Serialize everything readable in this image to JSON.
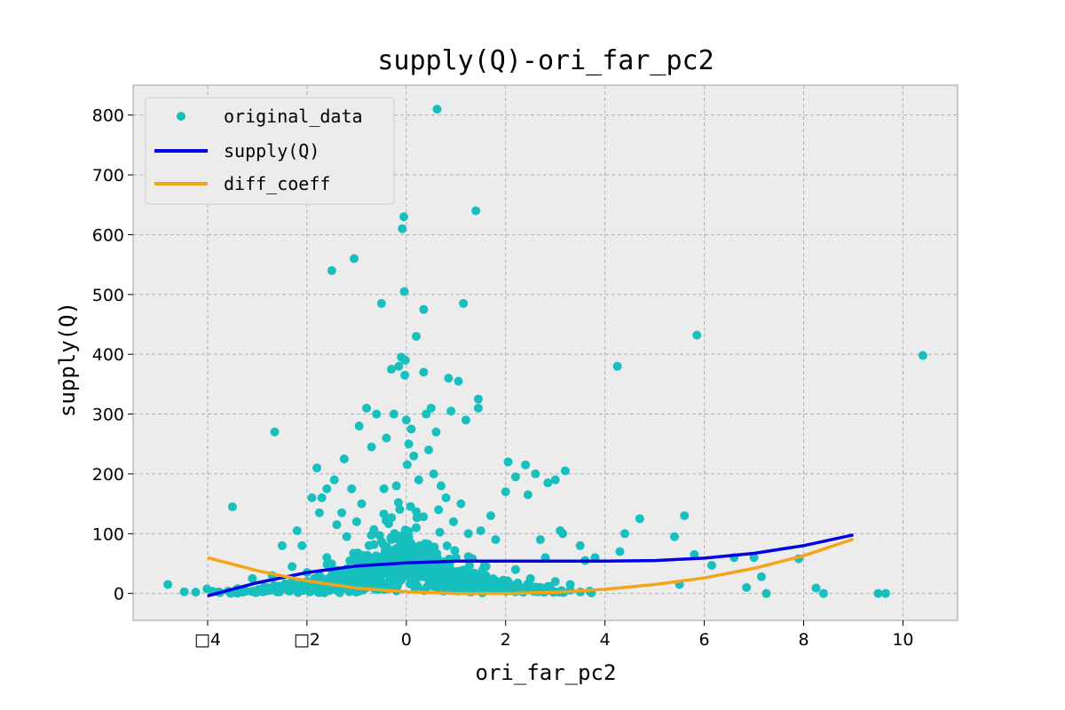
{
  "chart_data": {
    "type": "scatter",
    "title": "supply(Q)-ori_far_pc2",
    "xlabel": "ori_far_pc2",
    "ylabel": "supply(Q)",
    "xlim": [
      -5.5,
      11.1
    ],
    "ylim": [
      -45,
      850
    ],
    "xticks": [
      -4,
      -2,
      0,
      2,
      4,
      6,
      8,
      10
    ],
    "xtick_labels": [
      "□4",
      "□2",
      "0",
      "2",
      "4",
      "6",
      "8",
      "10"
    ],
    "yticks": [
      0,
      100,
      200,
      300,
      400,
      500,
      600,
      700,
      800
    ],
    "yticks_labels": [
      "0",
      "100",
      "200",
      "300",
      "400",
      "500",
      "600",
      "700",
      "800"
    ],
    "grid": true,
    "legend_position": "top-left",
    "colors": {
      "points": "#17bfbf",
      "supply": "#0000e6",
      "diff": "#f5a418",
      "background": "#ececec",
      "frame": "#bcbcbc"
    },
    "series": [
      {
        "name": "original_data",
        "kind": "scatter",
        "points": [
          [
            -4.8,
            15
          ],
          [
            -3.5,
            145
          ],
          [
            -3.4,
            8
          ],
          [
            -3.1,
            25
          ],
          [
            -2.8,
            10
          ],
          [
            -2.7,
            30
          ],
          [
            -2.65,
            270
          ],
          [
            -2.5,
            80
          ],
          [
            -2.3,
            45
          ],
          [
            -2.2,
            105
          ],
          [
            -2.1,
            80
          ],
          [
            -2.0,
            35
          ],
          [
            -1.9,
            160
          ],
          [
            -1.85,
            25
          ],
          [
            -1.8,
            210
          ],
          [
            -1.75,
            135
          ],
          [
            -1.7,
            160
          ],
          [
            -1.6,
            175
          ],
          [
            -1.6,
            60
          ],
          [
            -1.5,
            540
          ],
          [
            -1.45,
            190
          ],
          [
            -1.4,
            115
          ],
          [
            -1.3,
            135
          ],
          [
            -1.25,
            225
          ],
          [
            -1.2,
            95
          ],
          [
            -1.1,
            175
          ],
          [
            -1.05,
            560
          ],
          [
            -1.0,
            120
          ],
          [
            -0.95,
            280
          ],
          [
            -0.9,
            150
          ],
          [
            -0.8,
            310
          ],
          [
            -0.75,
            80
          ],
          [
            -0.7,
            245
          ],
          [
            -0.6,
            300
          ],
          [
            -0.5,
            485
          ],
          [
            -0.45,
            175
          ],
          [
            -0.4,
            260
          ],
          [
            -0.3,
            375
          ],
          [
            -0.25,
            300
          ],
          [
            -0.2,
            180
          ],
          [
            -0.15,
            380
          ],
          [
            -0.1,
            395
          ],
          [
            -0.08,
            610
          ],
          [
            -0.05,
            630
          ],
          [
            -0.04,
            505
          ],
          [
            -0.03,
            365
          ],
          [
            -0.02,
            390
          ],
          [
            0.0,
            290
          ],
          [
            0.05,
            250
          ],
          [
            0.1,
            275
          ],
          [
            0.15,
            230
          ],
          [
            0.2,
            430
          ],
          [
            0.25,
            190
          ],
          [
            0.35,
            475
          ],
          [
            0.35,
            370
          ],
          [
            0.4,
            300
          ],
          [
            0.45,
            240
          ],
          [
            0.5,
            310
          ],
          [
            0.55,
            200
          ],
          [
            0.6,
            270
          ],
          [
            0.62,
            810
          ],
          [
            0.65,
            140
          ],
          [
            0.7,
            180
          ],
          [
            0.8,
            160
          ],
          [
            0.85,
            360
          ],
          [
            0.9,
            305
          ],
          [
            0.95,
            120
          ],
          [
            1.05,
            355
          ],
          [
            1.1,
            150
          ],
          [
            1.15,
            485
          ],
          [
            1.2,
            290
          ],
          [
            1.25,
            100
          ],
          [
            1.4,
            640
          ],
          [
            1.45,
            325
          ],
          [
            1.45,
            310
          ],
          [
            1.5,
            105
          ],
          [
            1.7,
            130
          ],
          [
            1.8,
            90
          ],
          [
            2.0,
            170
          ],
          [
            2.05,
            220
          ],
          [
            2.2,
            195
          ],
          [
            2.4,
            215
          ],
          [
            2.45,
            165
          ],
          [
            2.6,
            200
          ],
          [
            2.7,
            90
          ],
          [
            2.8,
            60
          ],
          [
            2.85,
            185
          ],
          [
            3.0,
            190
          ],
          [
            3.1,
            105
          ],
          [
            3.15,
            100
          ],
          [
            3.2,
            205
          ],
          [
            3.5,
            80
          ],
          [
            3.6,
            55
          ],
          [
            3.8,
            60
          ],
          [
            4.25,
            380
          ],
          [
            4.3,
            70
          ],
          [
            4.4,
            100
          ],
          [
            4.7,
            125
          ],
          [
            5.4,
            95
          ],
          [
            5.5,
            15
          ],
          [
            5.6,
            130
          ],
          [
            5.8,
            65
          ],
          [
            5.85,
            432
          ],
          [
            6.15,
            47
          ],
          [
            6.6,
            60
          ],
          [
            6.85,
            10
          ],
          [
            7.0,
            60
          ],
          [
            7.15,
            28
          ],
          [
            7.25,
            0
          ],
          [
            7.9,
            58
          ],
          [
            8.25,
            9
          ],
          [
            8.4,
            0
          ],
          [
            9.5,
            0
          ],
          [
            9.65,
            0
          ],
          [
            10.4,
            398
          ],
          [
            -0.5,
            60
          ],
          [
            -0.3,
            90
          ],
          [
            0.2,
            110
          ],
          [
            0.5,
            75
          ],
          [
            1.0,
            60
          ],
          [
            -1.0,
            55
          ],
          [
            -1.5,
            40
          ],
          [
            -2.0,
            20
          ],
          [
            0.8,
            45
          ],
          [
            1.6,
            30
          ],
          [
            2.2,
            40
          ],
          [
            2.5,
            25
          ],
          [
            3.0,
            20
          ],
          [
            3.3,
            15
          ]
        ]
      },
      {
        "name": "supply(Q)",
        "kind": "line",
        "x": [
          -4,
          -3,
          -2,
          -1,
          0,
          1,
          2,
          3,
          4,
          5,
          6,
          7,
          8,
          9
        ],
        "y": [
          -4,
          18,
          35,
          46,
          51,
          54,
          54,
          54,
          54,
          55,
          59,
          67,
          80,
          98
        ]
      },
      {
        "name": "diff_coeff",
        "kind": "line",
        "x": [
          -4,
          -3,
          -2,
          -1,
          0,
          1,
          2,
          3,
          4,
          5,
          6,
          7,
          8,
          9
        ],
        "y": [
          60,
          38,
          21,
          9,
          3,
          0,
          0,
          2,
          7,
          15,
          26,
          42,
          63,
          91
        ]
      }
    ]
  }
}
